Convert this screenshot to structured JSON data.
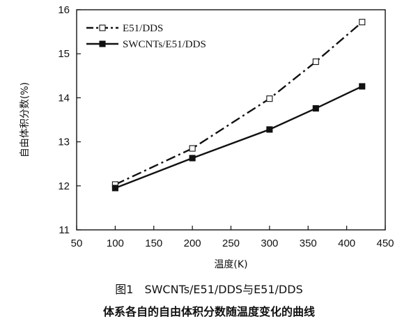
{
  "chart_data": {
    "type": "line",
    "xlabel": "温度(K)",
    "ylabel": "自由体积分数(%)",
    "xlim": [
      50,
      450
    ],
    "ylim": [
      11,
      16
    ],
    "xticks": [
      50,
      100,
      150,
      200,
      250,
      300,
      350,
      400,
      450
    ],
    "yticks": [
      11,
      12,
      13,
      14,
      15,
      16
    ],
    "grid": false,
    "legend_position": "top-left",
    "series": [
      {
        "name": "E51/DDS",
        "marker": "open-square",
        "line_style": "dash-dot",
        "x": [
          100,
          200,
          300,
          360,
          420
        ],
        "y": [
          12.03,
          12.85,
          13.98,
          14.82,
          15.72
        ]
      },
      {
        "name": "SWCNTs/E51/DDS",
        "marker": "filled-square",
        "line_style": "solid",
        "x": [
          100,
          200,
          300,
          360,
          420
        ],
        "y": [
          11.95,
          12.63,
          13.28,
          13.76,
          14.26
        ]
      }
    ]
  },
  "caption": {
    "line1": "图1　SWCNTs/E51/DDS与E51/DDS",
    "line2": "体系各自的自由体积分数随温度变化的曲线"
  },
  "colors": {
    "ink": "#111111",
    "background": "#ffffff"
  }
}
